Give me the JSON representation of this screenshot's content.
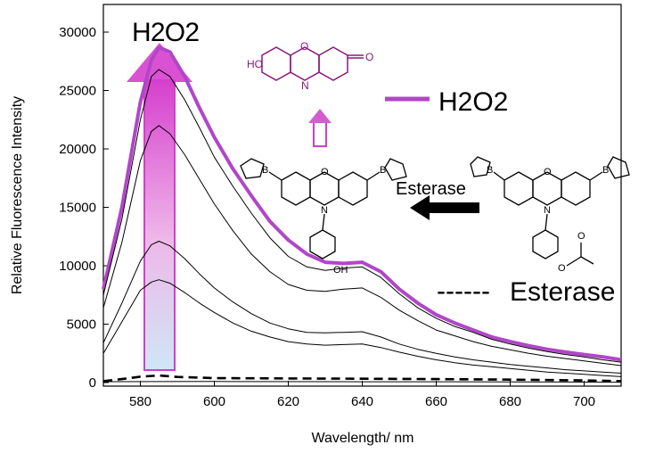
{
  "chart_data": {
    "type": "line",
    "xlabel": "Wavelength/ nm",
    "ylabel": "Relative Fluorescence Intensity",
    "xlim": [
      570,
      710
    ],
    "ylim": [
      0,
      32500
    ],
    "xticks": [
      "580",
      "600",
      "620",
      "640",
      "660",
      "680",
      "700"
    ],
    "yticks": [
      "0",
      "5000",
      "10000",
      "15000",
      "20000",
      "25000",
      "30000"
    ],
    "series": [
      {
        "name": "H2O2",
        "color": "#b146c8",
        "x": [
          570,
          575,
          580,
          583,
          585,
          588,
          592,
          596,
          600,
          605,
          610,
          615,
          620,
          625,
          630,
          635,
          640,
          645,
          650,
          655,
          660,
          665,
          670,
          675,
          680,
          685,
          690,
          695,
          700,
          705,
          710
        ],
        "y": [
          8000,
          15000,
          24000,
          27600,
          28700,
          28300,
          26200,
          23500,
          21000,
          18300,
          16000,
          13800,
          12200,
          11000,
          10300,
          10200,
          10300,
          9500,
          8000,
          6800,
          5800,
          5100,
          4500,
          3900,
          3500,
          3150,
          2850,
          2600,
          2400,
          2200,
          1950
        ]
      },
      {
        "name": "",
        "color": "#000000",
        "x": [
          570,
          575,
          580,
          583,
          585,
          588,
          592,
          596,
          600,
          605,
          610,
          615,
          620,
          625,
          630,
          635,
          640,
          645,
          650,
          655,
          660,
          665,
          670,
          675,
          680,
          685,
          690,
          695,
          700,
          705,
          710
        ],
        "y": [
          7500,
          14000,
          22500,
          26200,
          26800,
          26200,
          24200,
          21800,
          19300,
          16800,
          14500,
          12400,
          10800,
          9900,
          9600,
          9800,
          9900,
          9000,
          7600,
          6400,
          5500,
          4800,
          4300,
          3700,
          3300,
          2950,
          2650,
          2400,
          2200,
          1950,
          1750
        ]
      },
      {
        "name": "",
        "color": "#000000",
        "x": [
          570,
          575,
          580,
          583,
          585,
          588,
          592,
          596,
          600,
          605,
          610,
          615,
          620,
          625,
          630,
          635,
          640,
          645,
          650,
          655,
          660,
          665,
          670,
          675,
          680,
          685,
          690,
          695,
          700,
          705,
          710
        ],
        "y": [
          6400,
          12000,
          19000,
          21500,
          22000,
          21300,
          19500,
          17400,
          15300,
          13000,
          11000,
          9500,
          8400,
          7900,
          7800,
          8000,
          8100,
          7300,
          6200,
          5300,
          4500,
          4000,
          3500,
          3100,
          2800,
          2500,
          2250,
          2050,
          1850,
          1650,
          1450
        ]
      },
      {
        "name": "",
        "color": "#000000",
        "x": [
          570,
          575,
          580,
          583,
          585,
          588,
          592,
          596,
          600,
          605,
          610,
          615,
          620,
          625,
          630,
          635,
          640,
          645,
          650,
          655,
          660,
          665,
          670,
          675,
          680,
          685,
          690,
          695,
          700,
          705,
          710
        ],
        "y": [
          3400,
          6800,
          10400,
          11800,
          12100,
          11700,
          10600,
          9300,
          8100,
          6900,
          5900,
          5100,
          4600,
          4300,
          4250,
          4300,
          4350,
          3900,
          3300,
          2850,
          2500,
          2200,
          1950,
          1750,
          1550,
          1400,
          1250,
          1100,
          1000,
          900,
          800
        ]
      },
      {
        "name": "",
        "color": "#000000",
        "x": [
          570,
          575,
          580,
          583,
          585,
          588,
          592,
          596,
          600,
          605,
          610,
          615,
          620,
          625,
          630,
          635,
          640,
          645,
          650,
          655,
          660,
          665,
          670,
          675,
          680,
          685,
          690,
          695,
          700,
          705,
          710
        ],
        "y": [
          2500,
          5200,
          7900,
          8600,
          8800,
          8500,
          7700,
          6800,
          6000,
          5100,
          4400,
          3900,
          3500,
          3300,
          3200,
          3250,
          3300,
          3000,
          2600,
          2250,
          1950,
          1700,
          1500,
          1350,
          1200,
          1050,
          900,
          800,
          700,
          600,
          500
        ]
      },
      {
        "name": "Esterase",
        "color": "#000000",
        "dashed": true,
        "x": [
          570,
          575,
          580,
          585,
          590,
          600,
          620,
          640,
          660,
          680,
          700,
          710
        ],
        "y": [
          120,
          300,
          500,
          600,
          480,
          380,
          350,
          330,
          300,
          250,
          180,
          120
        ]
      },
      {
        "name": "",
        "color": "#000000",
        "x": [
          570,
          600,
          640,
          680,
          700,
          710
        ],
        "y": [
          80,
          90,
          70,
          60,
          40,
          30
        ]
      }
    ]
  },
  "labels": {
    "arrow_label": "H2O2",
    "legend_h2o2": "H2O2",
    "legend_esterase": "Esterase",
    "arrow_esterase": "Esterase",
    "legend_dash": "------",
    "atom_o": "O",
    "atom_n": "N",
    "atom_b": "B",
    "atom_ho": "HO",
    "atom_oh": "OH"
  }
}
